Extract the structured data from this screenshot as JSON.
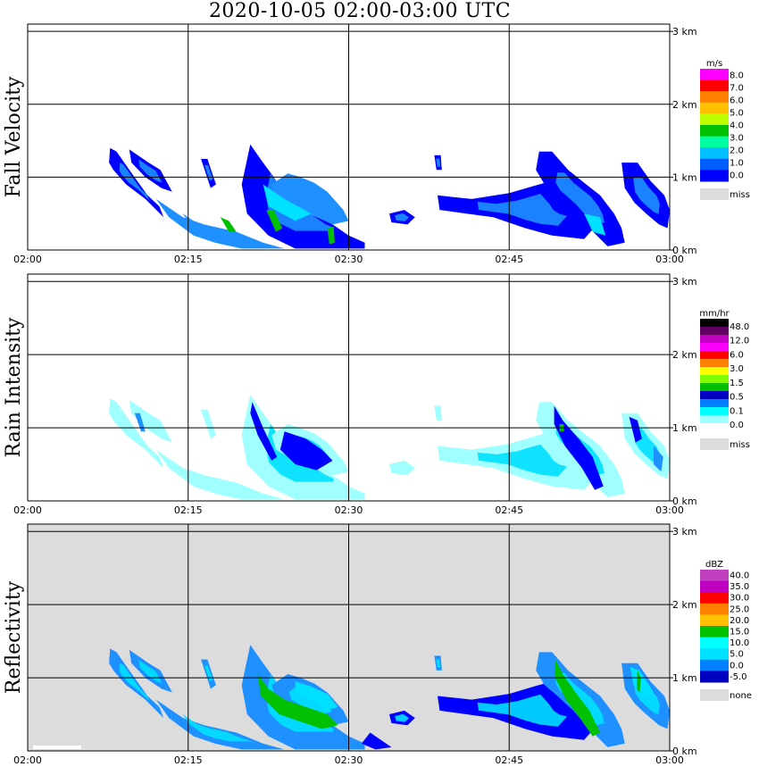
{
  "title": "2020-10-05   02:00-03:00 UTC",
  "time_ticks": [
    "02:00",
    "02:15",
    "02:30",
    "02:45",
    "03:00"
  ],
  "height_ticks": [
    "0 km",
    "1 km",
    "2 km",
    "3 km"
  ],
  "colors": {
    "ice_blue": "#0000ff",
    "rain_mid": "#1e90ff",
    "cyan": "#00e0ff",
    "light_cyan": "#a0ffff",
    "green": "#00c000",
    "missing_gray": "#dcdcdc"
  },
  "chart_data": [
    {
      "type": "heatmap",
      "panel_label": "Fall Velocity",
      "quantity": "Fall Velocity",
      "unit": "m/s",
      "x_range": [
        "02:00",
        "03:00"
      ],
      "y_range_km": [
        0,
        3.1
      ],
      "grid": true,
      "colorbar_labels": [
        "8.0",
        "7.0",
        "6.0",
        "5.0",
        "4.0",
        "3.0",
        "2.0",
        "1.0",
        "0.0"
      ],
      "colorbar_colors": [
        "#ff00ff",
        "#ff0000",
        "#ff8000",
        "#ffc000",
        "#c0ff00",
        "#00c000",
        "#00ffa0",
        "#00c0ff",
        "#0060ff",
        "#0000ff"
      ],
      "missing_label": "miss",
      "background": "#ffffff"
    },
    {
      "type": "heatmap",
      "panel_label": "Rain Intensity",
      "quantity": "Rain Intensity",
      "unit": "mm/hr",
      "x_range": [
        "02:00",
        "03:00"
      ],
      "y_range_km": [
        0,
        3.1
      ],
      "grid": true,
      "colorbar_labels": [
        "48.0",
        "12.0",
        "6.0",
        "3.0",
        "1.5",
        "0.5",
        "0.1",
        "0.0"
      ],
      "colorbar_colors": [
        "#000000",
        "#600060",
        "#c000c0",
        "#ff00ff",
        "#ff0000",
        "#ff8000",
        "#ffff00",
        "#80ff00",
        "#00c000",
        "#0000c0",
        "#0080ff",
        "#00ffff",
        "#a0ffff",
        "#ffffff"
      ],
      "missing_label": "miss",
      "background": "#ffffff"
    },
    {
      "type": "heatmap",
      "panel_label": "Reflectivity",
      "quantity": "Reflectivity",
      "unit": "dBZ",
      "x_range": [
        "02:00",
        "03:00"
      ],
      "y_range_km": [
        0,
        3.1
      ],
      "grid": true,
      "colorbar_labels": [
        "40.0",
        "35.0",
        "30.0",
        "25.0",
        "20.0",
        "15.0",
        "10.0",
        "5.0",
        "0.0",
        "-5.0"
      ],
      "colorbar_colors": [
        "#c040c0",
        "#c000c0",
        "#ff0000",
        "#ff8000",
        "#ffc000",
        "#00c000",
        "#00ffff",
        "#00e0ff",
        "#0080ff",
        "#0000c0"
      ],
      "missing_label": "none",
      "background": "#dcdcdc"
    }
  ]
}
